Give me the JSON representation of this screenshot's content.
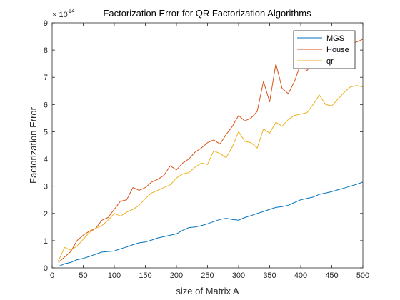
{
  "chart_data": {
    "type": "line",
    "title": "Factorization Error for QR Factorization Algorithms",
    "xlabel": "size of Matrix A",
    "ylabel": "Factorization Error",
    "exponent_label": "× 10",
    "exponent_power": "-14",
    "xlim": [
      0,
      500
    ],
    "ylim": [
      0,
      9
    ],
    "xticks": [
      0,
      50,
      100,
      150,
      200,
      250,
      300,
      350,
      400,
      450,
      500
    ],
    "yticks": [
      0,
      1,
      2,
      3,
      4,
      5,
      6,
      7,
      8,
      9
    ],
    "grid": false,
    "legend_position": "top-right",
    "x": [
      10,
      20,
      30,
      40,
      50,
      60,
      70,
      80,
      90,
      100,
      110,
      120,
      130,
      140,
      150,
      160,
      170,
      180,
      190,
      200,
      210,
      220,
      230,
      240,
      250,
      260,
      270,
      280,
      290,
      300,
      310,
      320,
      330,
      340,
      350,
      360,
      370,
      380,
      390,
      400,
      410,
      420,
      430,
      440,
      450,
      460,
      470,
      480,
      490,
      500
    ],
    "series": [
      {
        "name": "MGS",
        "color": "#0072BD",
        "values": [
          0.05,
          0.15,
          0.2,
          0.3,
          0.35,
          0.42,
          0.5,
          0.58,
          0.6,
          0.62,
          0.7,
          0.77,
          0.85,
          0.92,
          0.95,
          1.02,
          1.1,
          1.15,
          1.2,
          1.25,
          1.38,
          1.48,
          1.5,
          1.55,
          1.62,
          1.7,
          1.78,
          1.82,
          1.78,
          1.75,
          1.85,
          1.92,
          2.0,
          2.07,
          2.15,
          2.22,
          2.25,
          2.3,
          2.4,
          2.5,
          2.55,
          2.6,
          2.7,
          2.75,
          2.8,
          2.87,
          2.93,
          3.0,
          3.07,
          3.15
        ]
      },
      {
        "name": "House",
        "color": "#D95319",
        "values": [
          0.2,
          0.4,
          0.6,
          1.0,
          1.2,
          1.35,
          1.45,
          1.75,
          1.85,
          2.15,
          2.45,
          2.5,
          2.95,
          2.85,
          2.95,
          3.15,
          3.25,
          3.4,
          3.75,
          3.6,
          3.85,
          4.0,
          4.25,
          4.4,
          4.6,
          4.7,
          4.55,
          4.9,
          5.2,
          5.6,
          5.4,
          5.5,
          5.75,
          6.85,
          6.1,
          7.5,
          6.6,
          6.4,
          6.85,
          7.5,
          7.25,
          7.5,
          7.7,
          7.6,
          7.85,
          8.0,
          8.1,
          8.2,
          8.3,
          8.4
        ]
      },
      {
        "name": "qr",
        "color": "#EDB120",
        "values": [
          0.25,
          0.75,
          0.65,
          0.8,
          1.05,
          1.3,
          1.45,
          1.55,
          1.75,
          2.0,
          1.9,
          2.05,
          2.15,
          2.3,
          2.55,
          2.75,
          2.85,
          2.95,
          3.05,
          3.3,
          3.45,
          3.5,
          3.7,
          3.85,
          3.8,
          4.3,
          4.2,
          4.05,
          4.45,
          5.0,
          4.65,
          4.6,
          4.4,
          5.1,
          4.95,
          5.35,
          5.2,
          5.45,
          5.6,
          5.65,
          5.7,
          6.0,
          6.35,
          6.0,
          5.95,
          6.2,
          6.45,
          6.65,
          6.7,
          6.65
        ]
      }
    ]
  }
}
